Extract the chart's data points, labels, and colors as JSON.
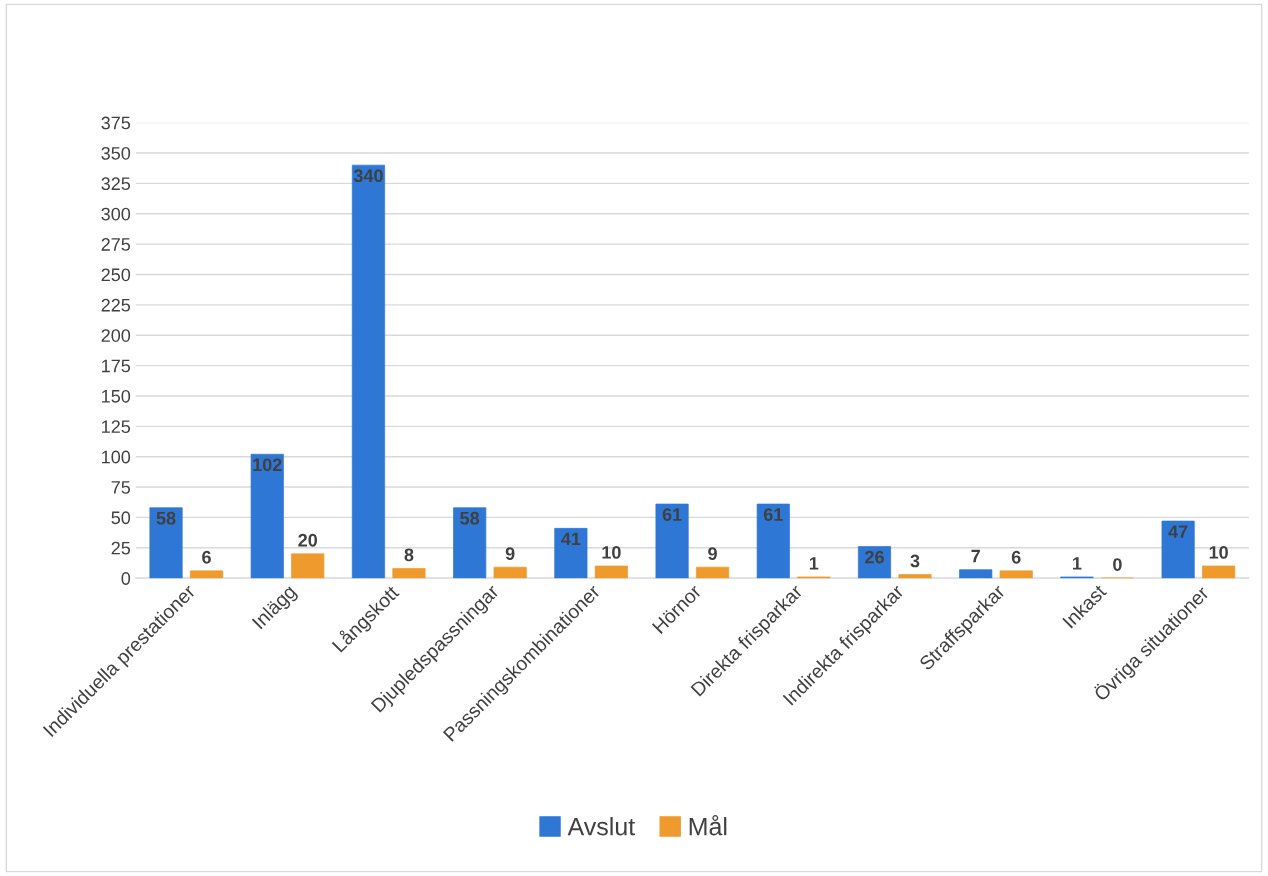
{
  "chart_data": {
    "type": "bar",
    "categories": [
      "Individuella prestationer",
      "Inlägg",
      "Långskott",
      "Djupledspassningar",
      "Passningskombinationer",
      "Hörnor",
      "Direkta frisparkar",
      "Indirekta frisparkar",
      "Straffsparkar",
      "Inkast",
      "Övriga situationer"
    ],
    "series": [
      {
        "name": "Avslut",
        "color": "#2f77d4",
        "values": [
          58,
          102,
          340,
          58,
          41,
          61,
          61,
          26,
          7,
          1,
          47
        ]
      },
      {
        "name": "Mål",
        "color": "#ee9a2c",
        "values": [
          6,
          20,
          8,
          9,
          10,
          9,
          1,
          3,
          6,
          0,
          10
        ]
      }
    ],
    "ylim": [
      0,
      375
    ],
    "yticks": [
      0,
      25,
      50,
      75,
      100,
      125,
      150,
      175,
      200,
      225,
      250,
      275,
      300,
      325,
      350,
      375
    ],
    "grid": "y",
    "legend": "bottom",
    "data_labels": true
  }
}
